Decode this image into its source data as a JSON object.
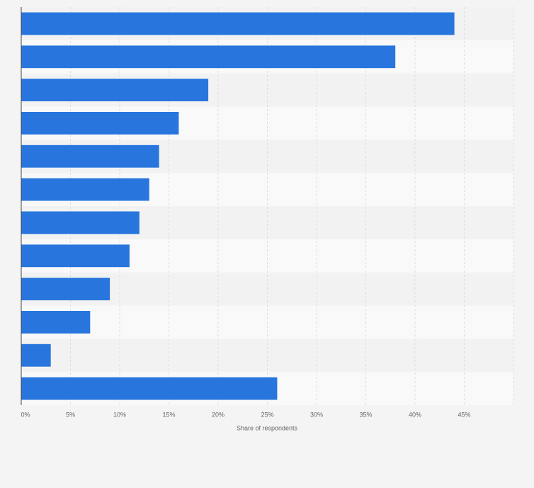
{
  "chart_data": {
    "type": "hbar",
    "categories": [
      null,
      null,
      null,
      null,
      null,
      null,
      null,
      null,
      null,
      null,
      null,
      null
    ],
    "values": [
      44,
      38,
      19,
      16,
      14,
      13,
      12,
      11,
      9,
      7,
      3,
      26
    ],
    "color": "#2876dd",
    "xlabel": "Share of respondents",
    "xlim": [
      0,
      50
    ],
    "xticks": [
      {
        "value": 0,
        "label": "0%"
      },
      {
        "value": 5,
        "label": "5%"
      },
      {
        "value": 10,
        "label": "10%"
      },
      {
        "value": 15,
        "label": "15%"
      },
      {
        "value": 20,
        "label": "20%"
      },
      {
        "value": 25,
        "label": "25%"
      },
      {
        "value": 30,
        "label": "30%"
      },
      {
        "value": 35,
        "label": "35%"
      },
      {
        "value": 40,
        "label": "40%"
      },
      {
        "value": 45,
        "label": "45%"
      }
    ],
    "grid": true
  }
}
